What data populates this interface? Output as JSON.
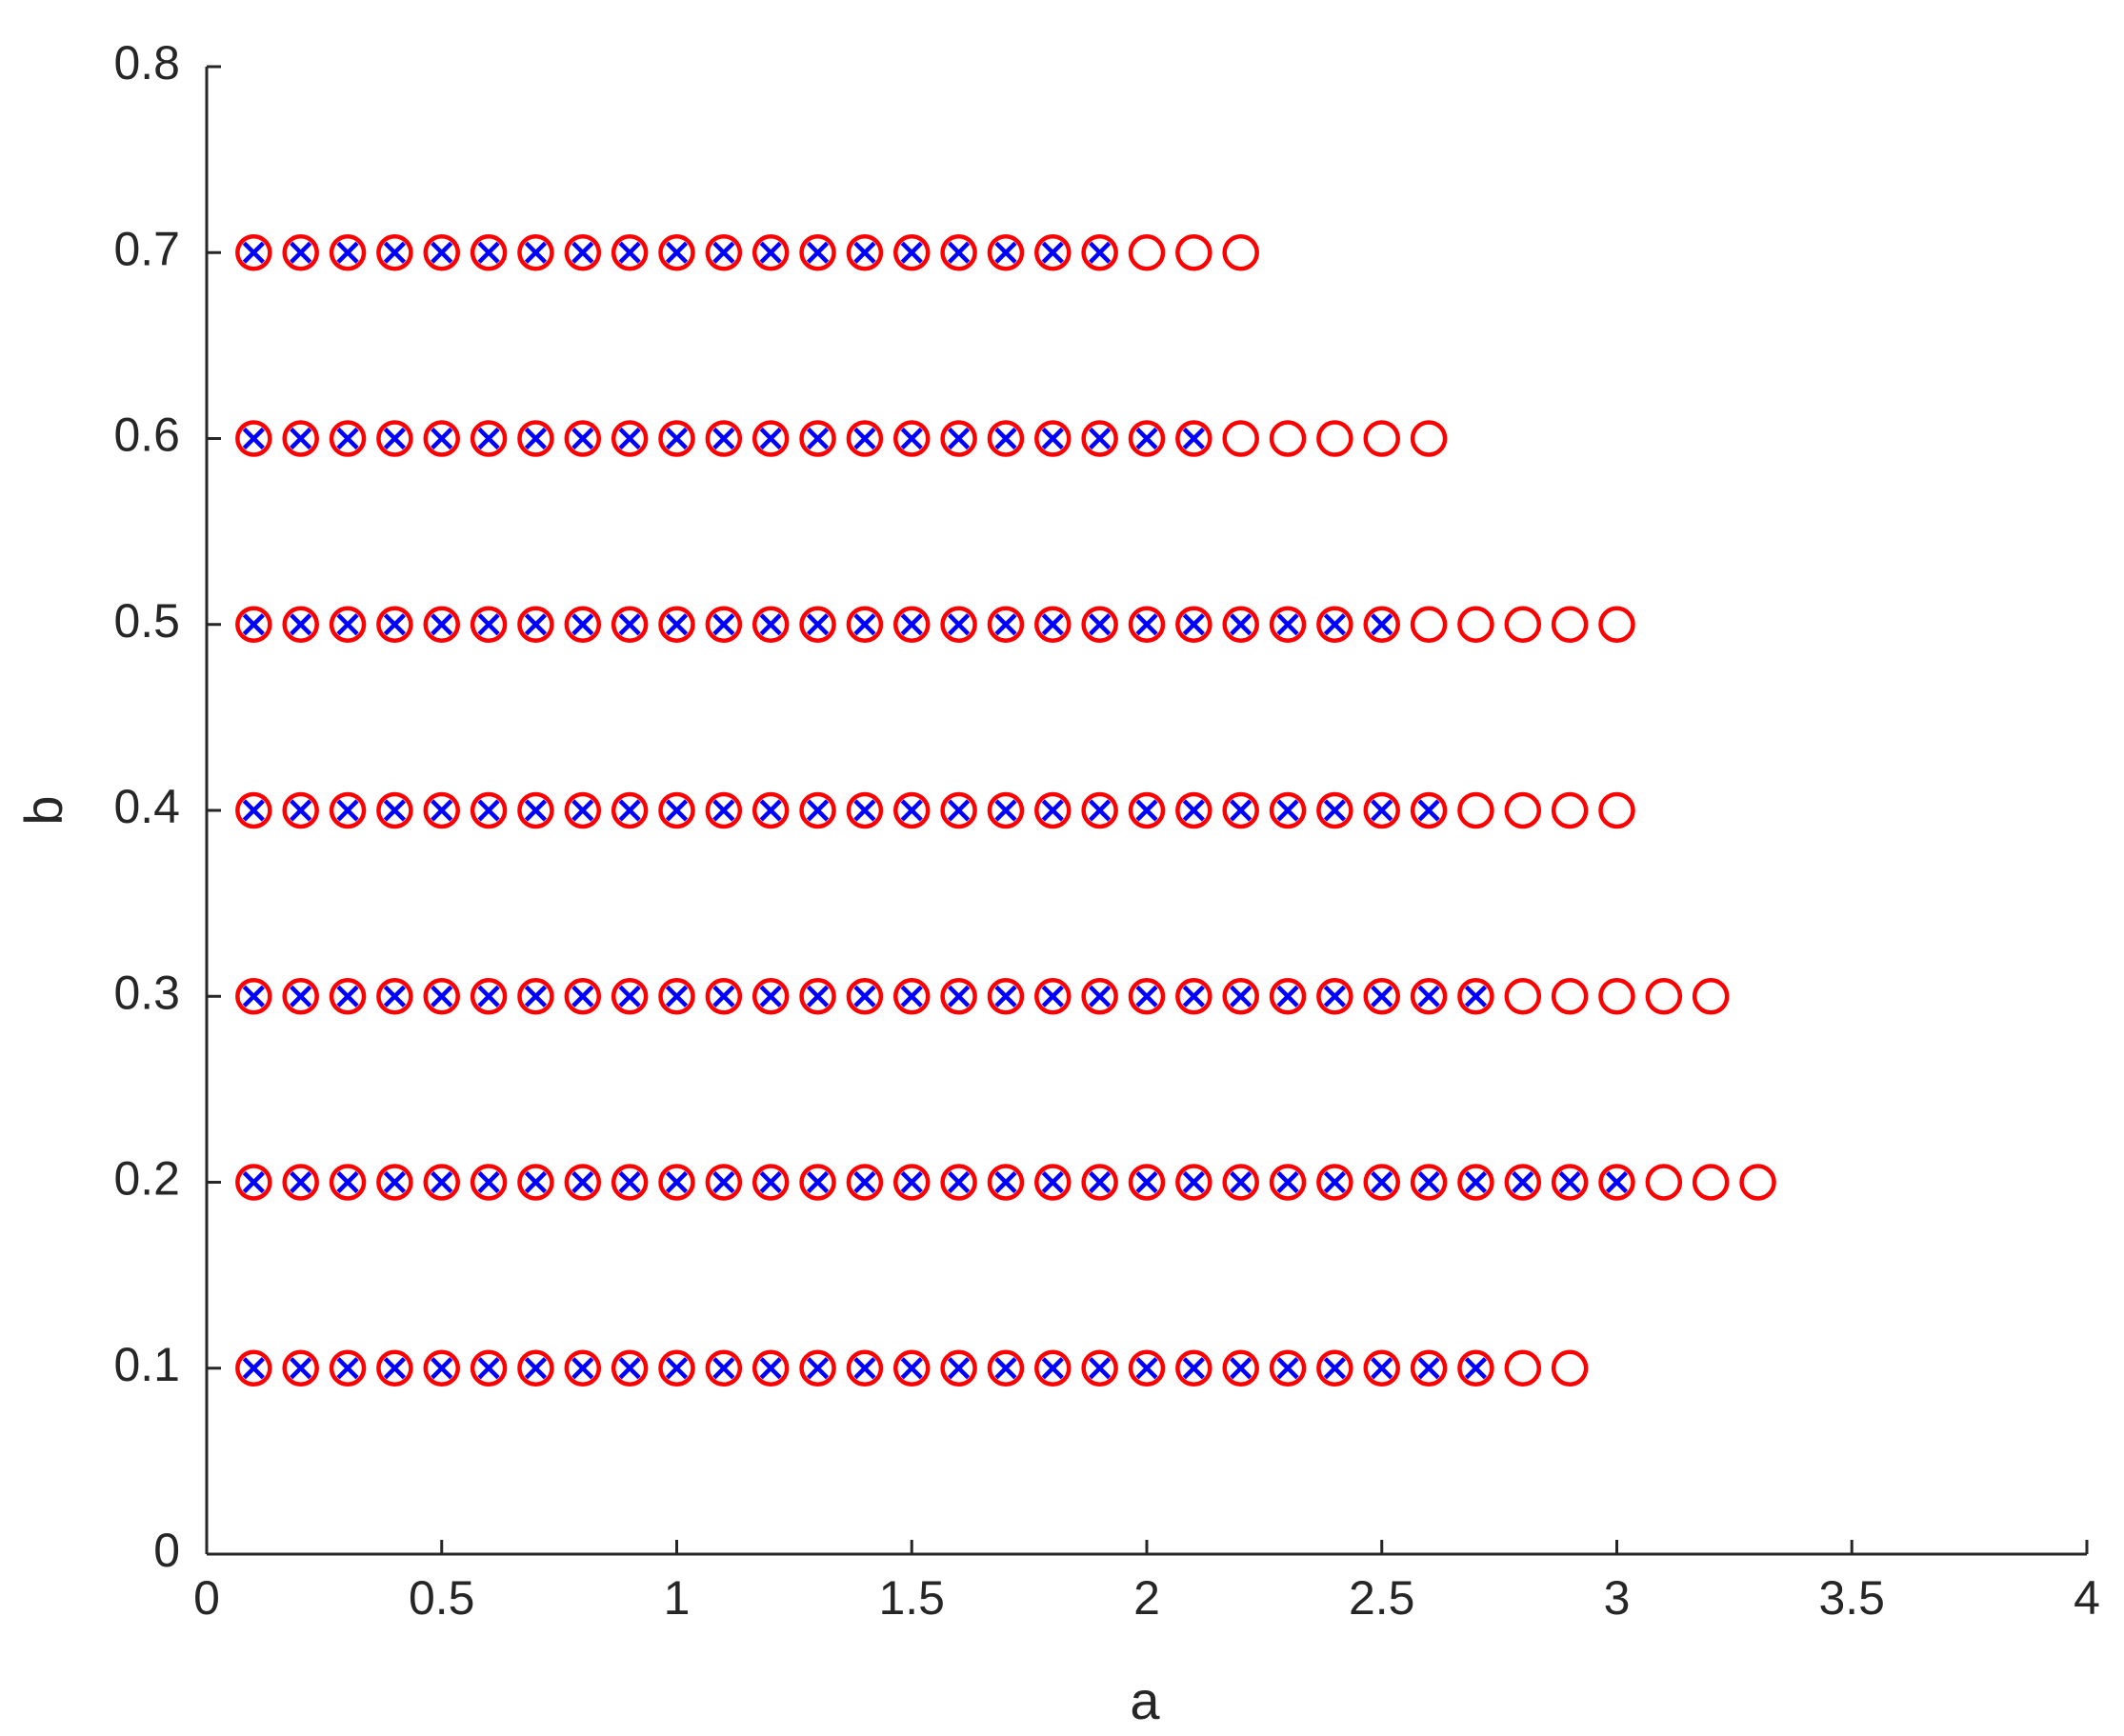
{
  "chart_data": {
    "type": "scatter",
    "xlabel": "a",
    "ylabel": "b",
    "xlim": [
      0,
      4
    ],
    "xticks": [
      0,
      0.5,
      1,
      1.5,
      2,
      2.5,
      3,
      3.5,
      4
    ],
    "ylim": [
      0,
      0.8
    ],
    "yticks": [
      0,
      0.1,
      0.2,
      0.3,
      0.4,
      0.5,
      0.6,
      0.7,
      0.8
    ],
    "series": [
      {
        "marker": "o",
        "color": "#ff0000",
        "rows": [
          {
            "y": 0.7,
            "x": [
              0.1,
              0.2,
              0.3,
              0.4,
              0.5,
              0.6,
              0.7,
              0.8,
              0.9,
              1,
              1.1,
              1.2,
              1.3,
              1.4,
              1.5,
              1.6,
              1.7,
              1.8,
              1.9,
              2,
              2.1,
              2.2
            ]
          },
          {
            "y": 0.6,
            "x": [
              0.1,
              0.2,
              0.3,
              0.4,
              0.5,
              0.6,
              0.7,
              0.8,
              0.9,
              1,
              1.1,
              1.2,
              1.3,
              1.4,
              1.5,
              1.6,
              1.7,
              1.8,
              1.9,
              2,
              2.1,
              2.2,
              2.3,
              2.4,
              2.5,
              2.6
            ]
          },
          {
            "y": 0.5,
            "x": [
              0.1,
              0.2,
              0.3,
              0.4,
              0.5,
              0.6,
              0.7,
              0.8,
              0.9,
              1,
              1.1,
              1.2,
              1.3,
              1.4,
              1.5,
              1.6,
              1.7,
              1.8,
              1.9,
              2,
              2.1,
              2.2,
              2.3,
              2.4,
              2.5,
              2.6,
              2.7,
              2.8,
              2.9,
              3
            ]
          },
          {
            "y": 0.4,
            "x": [
              0.1,
              0.2,
              0.3,
              0.4,
              0.5,
              0.6,
              0.7,
              0.8,
              0.9,
              1,
              1.1,
              1.2,
              1.3,
              1.4,
              1.5,
              1.6,
              1.7,
              1.8,
              1.9,
              2,
              2.1,
              2.2,
              2.3,
              2.4,
              2.5,
              2.6,
              2.7,
              2.8,
              2.9,
              3
            ]
          },
          {
            "y": 0.3,
            "x": [
              0.1,
              0.2,
              0.3,
              0.4,
              0.5,
              0.6,
              0.7,
              0.8,
              0.9,
              1,
              1.1,
              1.2,
              1.3,
              1.4,
              1.5,
              1.6,
              1.7,
              1.8,
              1.9,
              2,
              2.1,
              2.2,
              2.3,
              2.4,
              2.5,
              2.6,
              2.7,
              2.8,
              2.9,
              3,
              3.1,
              3.2
            ]
          },
          {
            "y": 0.2,
            "x": [
              0.1,
              0.2,
              0.3,
              0.4,
              0.5,
              0.6,
              0.7,
              0.8,
              0.9,
              1,
              1.1,
              1.2,
              1.3,
              1.4,
              1.5,
              1.6,
              1.7,
              1.8,
              1.9,
              2,
              2.1,
              2.2,
              2.3,
              2.4,
              2.5,
              2.6,
              2.7,
              2.8,
              2.9,
              3,
              3.1,
              3.2,
              3.3
            ]
          },
          {
            "y": 0.1,
            "x": [
              0.1,
              0.2,
              0.3,
              0.4,
              0.5,
              0.6,
              0.7,
              0.8,
              0.9,
              1,
              1.1,
              1.2,
              1.3,
              1.4,
              1.5,
              1.6,
              1.7,
              1.8,
              1.9,
              2,
              2.1,
              2.2,
              2.3,
              2.4,
              2.5,
              2.6,
              2.7,
              2.8,
              2.9
            ]
          }
        ]
      },
      {
        "marker": "x",
        "color": "#0000ff",
        "rows": [
          {
            "y": 0.7,
            "x": [
              0.1,
              0.2,
              0.3,
              0.4,
              0.5,
              0.6,
              0.7,
              0.8,
              0.9,
              1,
              1.1,
              1.2,
              1.3,
              1.4,
              1.5,
              1.6,
              1.7,
              1.8,
              1.9
            ]
          },
          {
            "y": 0.6,
            "x": [
              0.1,
              0.2,
              0.3,
              0.4,
              0.5,
              0.6,
              0.7,
              0.8,
              0.9,
              1,
              1.1,
              1.2,
              1.3,
              1.4,
              1.5,
              1.6,
              1.7,
              1.8,
              1.9,
              2,
              2.1
            ]
          },
          {
            "y": 0.5,
            "x": [
              0.1,
              0.2,
              0.3,
              0.4,
              0.5,
              0.6,
              0.7,
              0.8,
              0.9,
              1,
              1.1,
              1.2,
              1.3,
              1.4,
              1.5,
              1.6,
              1.7,
              1.8,
              1.9,
              2,
              2.1,
              2.2,
              2.3,
              2.4,
              2.5
            ]
          },
          {
            "y": 0.4,
            "x": [
              0.1,
              0.2,
              0.3,
              0.4,
              0.5,
              0.6,
              0.7,
              0.8,
              0.9,
              1,
              1.1,
              1.2,
              1.3,
              1.4,
              1.5,
              1.6,
              1.7,
              1.8,
              1.9,
              2,
              2.1,
              2.2,
              2.3,
              2.4,
              2.5,
              2.6
            ]
          },
          {
            "y": 0.3,
            "x": [
              0.1,
              0.2,
              0.3,
              0.4,
              0.5,
              0.6,
              0.7,
              0.8,
              0.9,
              1,
              1.1,
              1.2,
              1.3,
              1.4,
              1.5,
              1.6,
              1.7,
              1.8,
              1.9,
              2,
              2.1,
              2.2,
              2.3,
              2.4,
              2.5,
              2.6,
              2.7
            ]
          },
          {
            "y": 0.2,
            "x": [
              0.1,
              0.2,
              0.3,
              0.4,
              0.5,
              0.6,
              0.7,
              0.8,
              0.9,
              1,
              1.1,
              1.2,
              1.3,
              1.4,
              1.5,
              1.6,
              1.7,
              1.8,
              1.9,
              2,
              2.1,
              2.2,
              2.3,
              2.4,
              2.5,
              2.6,
              2.7,
              2.8,
              2.9,
              3
            ]
          },
          {
            "y": 0.1,
            "x": [
              0.1,
              0.2,
              0.3,
              0.4,
              0.5,
              0.6,
              0.7,
              0.8,
              0.9,
              1,
              1.1,
              1.2,
              1.3,
              1.4,
              1.5,
              1.6,
              1.7,
              1.8,
              1.9,
              2,
              2.1,
              2.2,
              2.3,
              2.4,
              2.5,
              2.6,
              2.7
            ]
          }
        ]
      }
    ]
  }
}
